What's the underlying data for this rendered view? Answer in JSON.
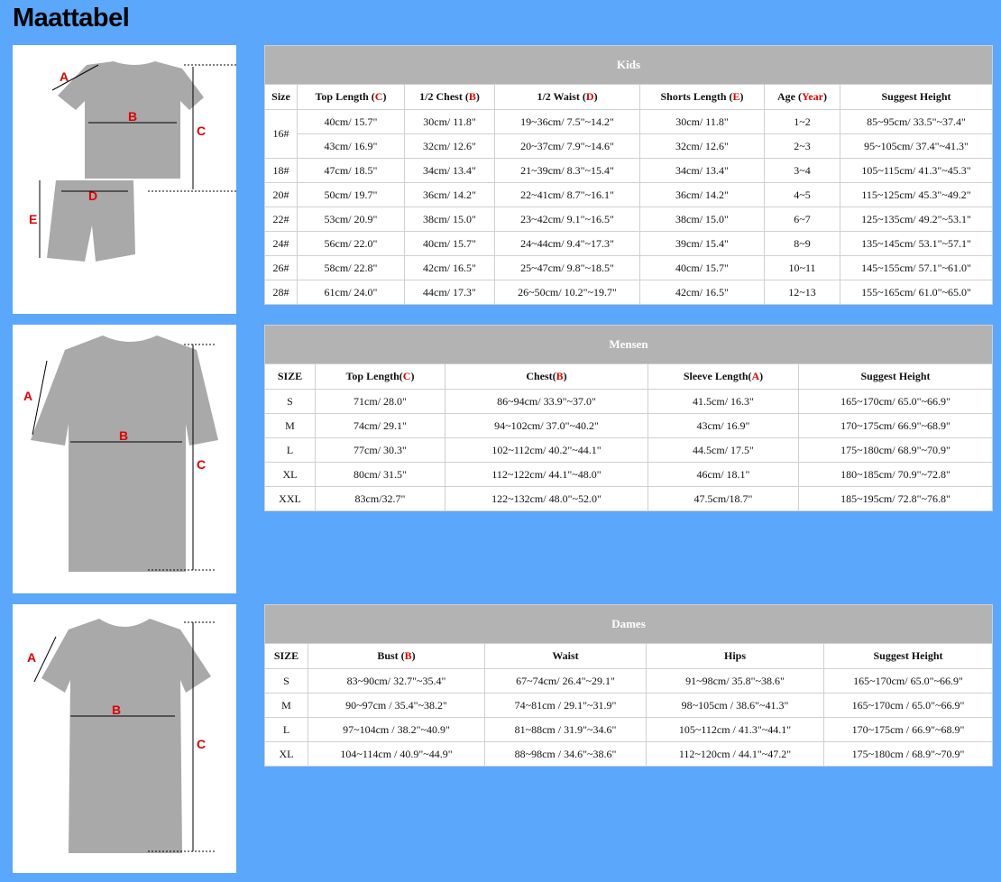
{
  "title": "Maattabel",
  "colors": {
    "background": "#5aa7fc",
    "caption": "#b3b3b3",
    "accent": "#e00000"
  },
  "images": {
    "kids": {
      "labels": [
        "A",
        "B",
        "C",
        "D",
        "E"
      ]
    },
    "men": {
      "labels": [
        "A",
        "B",
        "C"
      ]
    },
    "women": {
      "labels": [
        "A",
        "B",
        "C"
      ]
    }
  },
  "tables": [
    {
      "key": "kids",
      "caption": "Kids",
      "headers": [
        {
          "t": "Size"
        },
        {
          "t": "Top Length (",
          "r": "C",
          "e": ")"
        },
        {
          "t": "1/2 Chest (",
          "r": "B",
          "e": ")"
        },
        {
          "t": "1/2 Waist (",
          "r": "D",
          "e": ")"
        },
        {
          "t": "Shorts Length (",
          "r": "E",
          "e": ")"
        },
        {
          "t": "Age (",
          "r": "Year",
          "e": ")"
        },
        {
          "t": "Suggest Height"
        }
      ],
      "rows": [
        [
          "16#",
          "40cm/ 15.7\"",
          "30cm/ 11.8\"",
          "19~36cm/ 7.5\"~14.2\"",
          "30cm/ 11.8\"",
          "1~2",
          "85~95cm/ 33.5\"~37.4\""
        ],
        [
          "",
          "43cm/ 16.9\"",
          "32cm/ 12.6\"",
          "20~37cm/ 7.9\"~14.6\"",
          "32cm/ 12.6\"",
          "2~3",
          "95~105cm/ 37.4\"~41.3\""
        ],
        [
          "18#",
          "47cm/ 18.5\"",
          "34cm/ 13.4\"",
          "21~39cm/ 8.3\"~15.4\"",
          "34cm/ 13.4\"",
          "3~4",
          "105~115cm/ 41.3\"~45.3\""
        ],
        [
          "20#",
          "50cm/ 19.7\"",
          "36cm/ 14.2\"",
          "22~41cm/ 8.7\"~16.1\"",
          "36cm/ 14.2\"",
          "4~5",
          "115~125cm/ 45.3\"~49.2\""
        ],
        [
          "22#",
          "53cm/ 20.9\"",
          "38cm/ 15.0\"",
          "23~42cm/ 9.1\"~16.5\"",
          "38cm/ 15.0\"",
          "6~7",
          "125~135cm/ 49.2\"~53.1\""
        ],
        [
          "24#",
          "56cm/ 22.0\"",
          "40cm/ 15.7\"",
          "24~44cm/ 9.4\"~17.3\"",
          "39cm/ 15.4\"",
          "8~9",
          "135~145cm/ 53.1\"~57.1\""
        ],
        [
          "26#",
          "58cm/ 22.8\"",
          "42cm/ 16.5\"",
          "25~47cm/ 9.8\"~18.5\"",
          "40cm/ 15.7\"",
          "10~11",
          "145~155cm/ 57.1\"~61.0\""
        ],
        [
          "28#",
          "61cm/ 24.0\"",
          "44cm/ 17.3\"",
          "26~50cm/ 10.2\"~19.7\"",
          "42cm/ 16.5\"",
          "12~13",
          "155~165cm/ 61.0\"~65.0\""
        ]
      ]
    },
    {
      "key": "men",
      "caption": "Mensen",
      "headers": [
        {
          "t": "SIZE"
        },
        {
          "t": "Top Length(",
          "r": "C",
          "e": ")"
        },
        {
          "t": "Chest(",
          "r": "B",
          "e": ")"
        },
        {
          "t": "Sleeve Length(",
          "r": "A",
          "e": ")"
        },
        {
          "t": "Suggest Height"
        }
      ],
      "rows": [
        [
          "S",
          "71cm/ 28.0\"",
          "86~94cm/ 33.9\"~37.0\"",
          "41.5cm/ 16.3\"",
          "165~170cm/ 65.0\"~66.9\""
        ],
        [
          "M",
          "74cm/ 29.1\"",
          "94~102cm/ 37.0\"~40.2\"",
          "43cm/ 16.9\"",
          "170~175cm/ 66.9\"~68.9\""
        ],
        [
          "L",
          "77cm/ 30.3\"",
          "102~112cm/ 40.2\"~44.1\"",
          "44.5cm/ 17.5\"",
          "175~180cm/ 68.9\"~70.9\""
        ],
        [
          "XL",
          "80cm/ 31.5\"",
          "112~122cm/ 44.1\"~48.0\"",
          "46cm/ 18.1\"",
          "180~185cm/ 70.9\"~72.8\""
        ],
        [
          "XXL",
          "83cm/32.7\"",
          "122~132cm/ 48.0\"~52.0\"",
          "47.5cm/18.7\"",
          "185~195cm/ 72.8\"~76.8\""
        ]
      ]
    },
    {
      "key": "women",
      "caption": "Dames",
      "headers": [
        {
          "t": "SIZE"
        },
        {
          "t": "Bust (",
          "r": "B",
          "e": ")"
        },
        {
          "t": "Waist"
        },
        {
          "t": "Hips"
        },
        {
          "t": "Suggest Height"
        }
      ],
      "rows": [
        [
          "S",
          "83~90cm/ 32.7\"~35.4\"",
          "67~74cm/ 26.4\"~29.1\"",
          "91~98cm/ 35.8\"~38.6\"",
          "165~170cm/ 65.0\"~66.9\""
        ],
        [
          "M",
          "90~97cm / 35.4\"~38.2\"",
          "74~81cm / 29.1\"~31.9\"",
          "98~105cm / 38.6\"~41.3\"",
          "165~170cm / 65.0\"~66.9\""
        ],
        [
          "L",
          "97~104cm / 38.2\"~40.9\"",
          "81~88cm / 31.9\"~34.6\"",
          "105~112cm / 41.3\"~44.1\"",
          "170~175cm / 66.9\"~68.9\""
        ],
        [
          "XL",
          "104~114cm / 40.9\"~44.9\"",
          "88~98cm / 34.6\"~38.6\"",
          "112~120cm / 44.1\"~47.2\"",
          "175~180cm / 68.9\"~70.9\""
        ]
      ]
    }
  ]
}
